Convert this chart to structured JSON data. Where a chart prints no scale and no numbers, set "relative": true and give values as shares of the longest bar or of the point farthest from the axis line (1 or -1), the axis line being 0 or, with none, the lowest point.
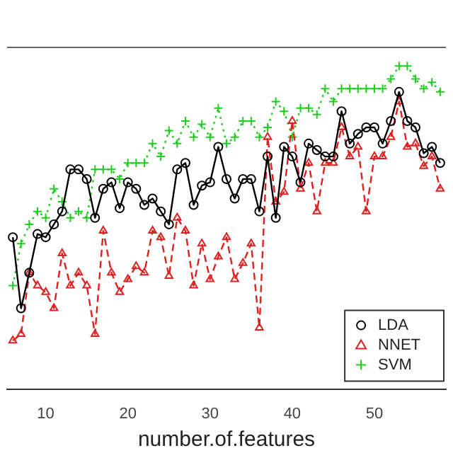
{
  "chart_data": {
    "type": "line",
    "xlabel": "number.of.features",
    "relative": true,
    "xlim": [
      5.3,
      58.7
    ],
    "xticks": [
      10,
      20,
      30,
      40,
      50
    ],
    "grid": false,
    "legend": "bottom right",
    "x": [
      6,
      7,
      8,
      9,
      10,
      11,
      12,
      13,
      14,
      15,
      16,
      17,
      18,
      19,
      20,
      21,
      22,
      23,
      24,
      25,
      26,
      27,
      28,
      29,
      30,
      31,
      32,
      33,
      34,
      35,
      36,
      37,
      38,
      39,
      40,
      41,
      42,
      43,
      44,
      45,
      46,
      47,
      48,
      49,
      50,
      51,
      52,
      53,
      54,
      55,
      56,
      57,
      58
    ],
    "series": [
      {
        "name": "LDA",
        "color": "#000000",
        "marker": "circle",
        "line_style": "solid",
        "values": [
          0.47,
          0.25,
          0.36,
          0.48,
          0.47,
          0.51,
          0.55,
          0.68,
          0.68,
          0.65,
          0.53,
          0.62,
          0.64,
          0.56,
          0.64,
          0.62,
          0.57,
          0.59,
          0.55,
          0.51,
          0.68,
          0.7,
          0.57,
          0.63,
          0.64,
          0.75,
          0.65,
          0.59,
          0.65,
          0.65,
          0.55,
          0.72,
          0.53,
          0.75,
          0.72,
          0.64,
          0.76,
          0.74,
          0.72,
          0.72,
          0.86,
          0.76,
          0.79,
          0.81,
          0.81,
          0.76,
          0.83,
          0.92,
          0.83,
          0.81,
          0.73,
          0.75,
          0.7
        ]
      },
      {
        "name": "NNET",
        "color": "#df2020",
        "marker": "triangle",
        "line_style": "dashed",
        "values": [
          0.15,
          0.17,
          0.36,
          0.32,
          0.3,
          0.25,
          0.42,
          0.32,
          0.36,
          0.32,
          0.17,
          0.49,
          0.36,
          0.3,
          0.34,
          0.38,
          0.36,
          0.49,
          0.47,
          0.35,
          0.53,
          0.49,
          0.32,
          0.45,
          0.34,
          0.41,
          0.47,
          0.34,
          0.39,
          0.45,
          0.19,
          0.78,
          0.58,
          0.61,
          0.83,
          0.62,
          0.7,
          0.55,
          0.7,
          0.7,
          0.81,
          0.72,
          0.75,
          0.55,
          0.72,
          0.72,
          0.78,
          0.89,
          0.75,
          0.76,
          0.69,
          0.72,
          0.62
        ]
      },
      {
        "name": "SVM",
        "color": "#22cc22",
        "marker": "cross",
        "line_style": "dotted",
        "values": [
          0.32,
          0.45,
          0.51,
          0.55,
          0.53,
          0.62,
          0.58,
          0.53,
          0.55,
          0.53,
          0.68,
          0.68,
          0.68,
          0.65,
          0.7,
          0.7,
          0.7,
          0.76,
          0.72,
          0.8,
          0.76,
          0.83,
          0.78,
          0.82,
          0.78,
          0.87,
          0.76,
          0.78,
          0.83,
          0.83,
          0.78,
          0.81,
          0.89,
          0.86,
          0.78,
          0.87,
          0.87,
          0.85,
          0.93,
          0.89,
          0.93,
          0.93,
          0.93,
          0.93,
          0.93,
          0.93,
          0.96,
          1,
          1,
          0.96,
          0.93,
          0.95,
          0.92
        ]
      }
    ]
  }
}
